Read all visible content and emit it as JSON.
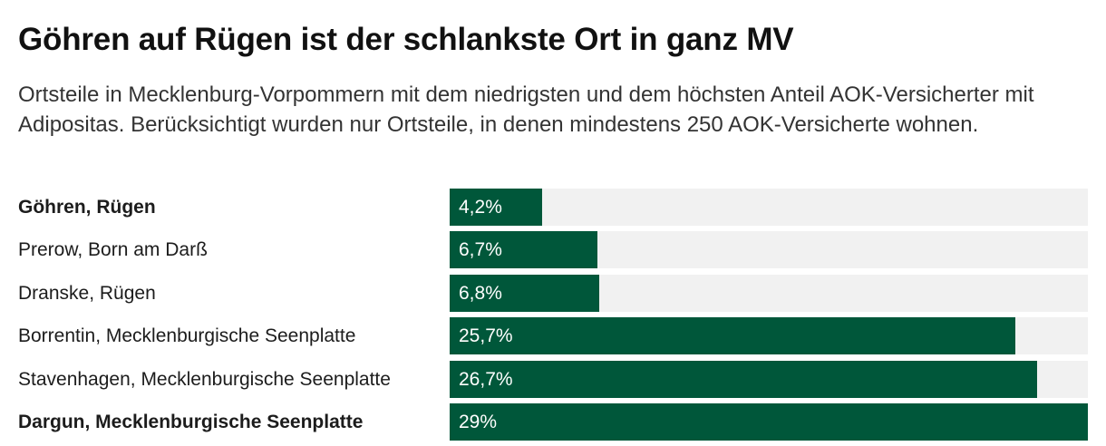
{
  "title": "Göhren auf Rügen ist der schlankste Ort in ganz MV",
  "subtitle": "Ortsteile in Mecklenburg-Vorpommern mit dem niedrigsten und dem höchsten Anteil AOK-Versicherter mit Adipositas. Berücksichtigt wurden nur Ortsteile, in denen mindestens 250 AOK-Versicherte wohnen.",
  "colors": {
    "bar": "#00573a",
    "track": "#f1f1f1",
    "label_text": "#1c1c1c",
    "value_text": "#ffffff"
  },
  "chart_data": {
    "type": "bar",
    "orientation": "horizontal",
    "categories": [
      "Göhren, Rügen",
      "Prerow, Born am Darß",
      "Dranske, Rügen",
      "Borrentin, Mecklenburgische Seenplatte",
      "Stavenhagen, Mecklenburgische Seenplatte",
      "Dargun, Mecklenburgische Seenplatte"
    ],
    "values": [
      4.2,
      6.7,
      6.8,
      25.7,
      26.7,
      29
    ],
    "value_labels": [
      "4,2%",
      "6,7%",
      "6,8%",
      "25,7%",
      "26,7%",
      "29%"
    ],
    "highlighted": [
      true,
      false,
      false,
      false,
      false,
      true
    ],
    "xlim": [
      0,
      29
    ],
    "unit": "%",
    "grid": false,
    "legend": "none"
  }
}
